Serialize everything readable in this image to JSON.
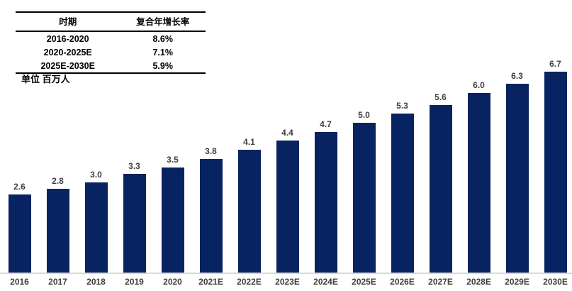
{
  "unit_label": "单位 百万人",
  "cagr_table": {
    "headers": [
      "时期",
      "复合年增长率"
    ],
    "rows": [
      [
        "2016-2020",
        "8.6%"
      ],
      [
        "2020-2025E",
        "7.1%"
      ],
      [
        "2025E-2030E",
        "5.9%"
      ]
    ]
  },
  "chart_data": {
    "type": "bar",
    "categories": [
      "2016",
      "2017",
      "2018",
      "2019",
      "2020",
      "2021E",
      "2022E",
      "2023E",
      "2024E",
      "2025E",
      "2026E",
      "2027E",
      "2028E",
      "2029E",
      "2030E"
    ],
    "values": [
      2.6,
      2.8,
      3.0,
      3.3,
      3.5,
      3.8,
      4.1,
      4.4,
      4.7,
      5.0,
      5.3,
      5.6,
      6.0,
      6.3,
      6.7
    ],
    "title": "",
    "xlabel": "",
    "ylabel": "单位 百万人",
    "ylim": [
      0,
      7
    ],
    "grid": false,
    "legend": "none",
    "bar_color": "#082362",
    "value_label_color": "#404040",
    "tick_label_color": "#404040",
    "axis_line_color": "#d9d9d9",
    "table_border_color": "#000000"
  }
}
